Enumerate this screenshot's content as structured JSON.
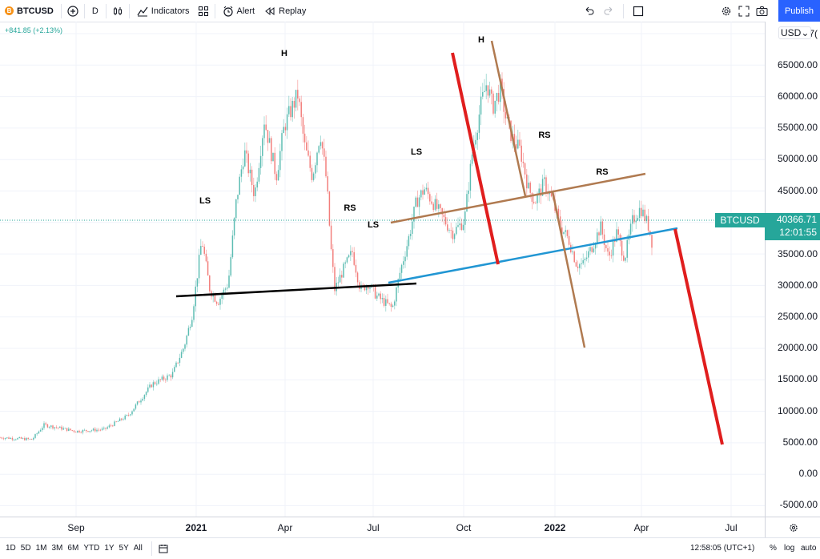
{
  "toolbar": {
    "symbol": "BTCUSD",
    "symbol_icon": "B",
    "interval": "D",
    "indicators_label": "Indicators",
    "alert_label": "Alert",
    "replay_label": "Replay",
    "publish_label": "Publish"
  },
  "chart": {
    "change_text": "+841.85 (+2.13%)",
    "currency_label": "USD",
    "symbol_badge": "BTCUSD",
    "last_price": "40366.71",
    "countdown": "12:01:55",
    "price_labels": [
      "7(",
      "65000.00",
      "60000.00",
      "55000.00",
      "50000.00",
      "45000.00",
      "35000.00",
      "30000.00",
      "25000.00",
      "20000.00",
      "15000.00",
      "10000.00",
      "5000.00",
      "0.00",
      "-5000.00"
    ],
    "time_labels": [
      "Sep",
      "2021",
      "Apr",
      "Jul",
      "Oct",
      "2022",
      "Apr",
      "Jul"
    ],
    "pattern_labels": [
      "LS",
      "H",
      "RS",
      "LS",
      "LS",
      "H",
      "RS",
      "RS"
    ]
  },
  "bottom": {
    "ranges": [
      "1D",
      "5D",
      "1M",
      "3M",
      "6M",
      "YTD",
      "1Y",
      "5Y",
      "All"
    ],
    "clock": "12:58:05 (UTC+1)",
    "percent": "%",
    "log": "log",
    "auto": "auto"
  },
  "colors": {
    "up": "#26a69a",
    "down": "#ef5350",
    "accent": "#2962ff",
    "red_line": "#e01e1e",
    "brown_line": "#b07a50",
    "blue_line": "#2196d3"
  }
}
